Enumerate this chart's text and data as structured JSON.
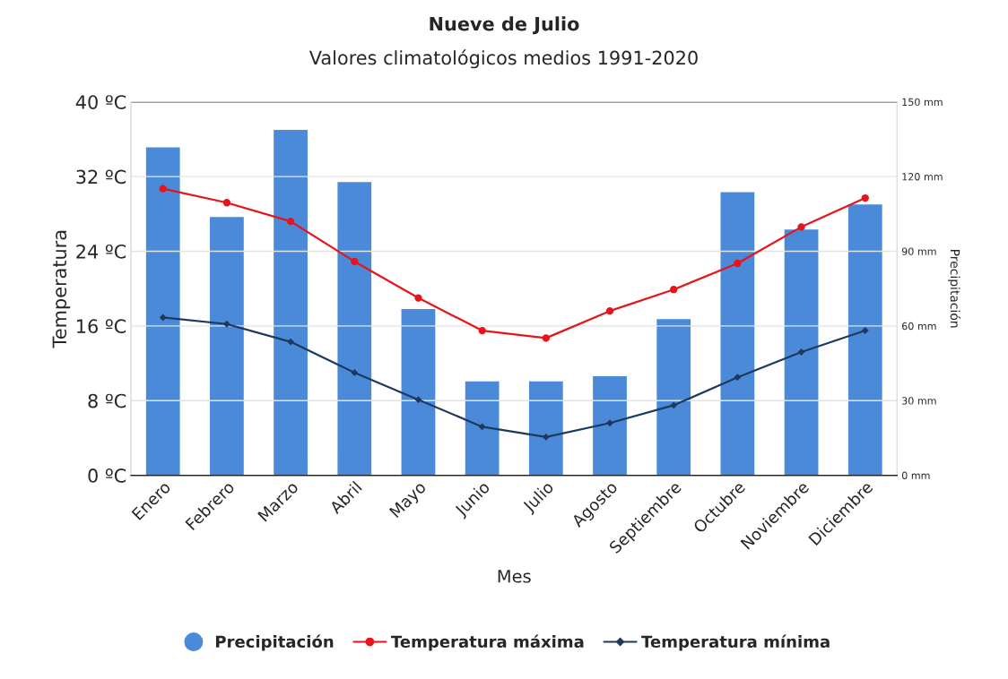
{
  "chart_data": {
    "type": "bar",
    "title": "Nueve de Julio",
    "subtitle": "Valores climatológicos medios 1991-2020",
    "xlabel": "Mes",
    "ylabel": "Temperatura",
    "y2label": "Precipitación",
    "categories": [
      "Enero",
      "Febrero",
      "Marzo",
      "Abril",
      "Mayo",
      "Junio",
      "Julio",
      "Agosto",
      "Septiembre",
      "Octubre",
      "Noviembre",
      "Diciembre"
    ],
    "series": [
      {
        "name": "Precipitación",
        "axis": "y2",
        "color": "#4a8ad9",
        "values": [
          132,
          104,
          139,
          118,
          67,
          38,
          38,
          40,
          63,
          114,
          99,
          109
        ]
      },
      {
        "name": "Temperatura máxima",
        "type": "line",
        "axis": "y",
        "color": "#e8141b",
        "marker": "circle",
        "values": [
          30.7,
          29.2,
          27.2,
          22.9,
          19.0,
          15.5,
          14.7,
          17.6,
          19.9,
          22.7,
          26.6,
          29.7
        ]
      },
      {
        "name": "Temperatura mínima",
        "type": "line",
        "axis": "y",
        "color": "#1d3a5c",
        "marker": "diamond",
        "values": [
          16.9,
          16.2,
          14.3,
          11.0,
          8.1,
          5.2,
          4.1,
          5.6,
          7.5,
          10.5,
          13.2,
          15.5
        ]
      }
    ],
    "ylim": [
      0,
      40
    ],
    "yticks": [
      {
        "value": 0,
        "label": "0 ºC"
      },
      {
        "value": 8,
        "label": "8 ºC"
      },
      {
        "value": 16,
        "label": "16 ºC"
      },
      {
        "value": 24,
        "label": "24 ºC"
      },
      {
        "value": 32,
        "label": "32 ºC"
      },
      {
        "value": 40,
        "label": "40 ºC"
      }
    ],
    "y2lim": [
      0,
      150
    ],
    "y2ticks": [
      {
        "value": 0,
        "label": "0 mm"
      },
      {
        "value": 30,
        "label": "30 mm"
      },
      {
        "value": 60,
        "label": "60 mm"
      },
      {
        "value": 90,
        "label": "90 mm"
      },
      {
        "value": 120,
        "label": "120 mm"
      },
      {
        "value": 150,
        "label": "150 mm"
      }
    ],
    "grid": "y",
    "legend": "bottom",
    "line_style": "solid"
  }
}
